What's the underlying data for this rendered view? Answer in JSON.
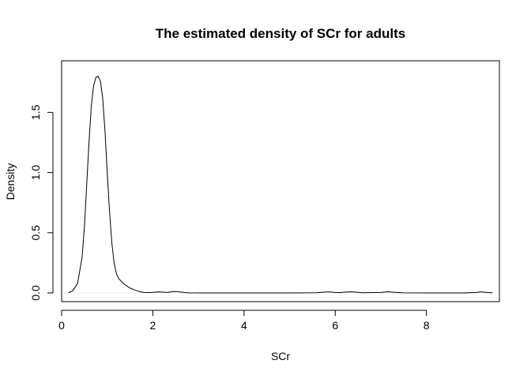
{
  "chart_data": {
    "type": "line",
    "title": "The estimated density of SCr for adults",
    "xlabel": "SCr",
    "ylabel": "Density",
    "xlim": [
      0,
      9.6
    ],
    "ylim": [
      0,
      1.85
    ],
    "x_ticks": [
      {
        "value": 0,
        "label": "0"
      },
      {
        "value": 2,
        "label": "2"
      },
      {
        "value": 4,
        "label": "4"
      },
      {
        "value": 6,
        "label": "6"
      },
      {
        "value": 8,
        "label": "8"
      }
    ],
    "y_ticks": [
      {
        "value": 0,
        "label": "0.0"
      },
      {
        "value": 0.5,
        "label": "0.5"
      },
      {
        "value": 1.0,
        "label": "1.0"
      },
      {
        "value": 1.5,
        "label": "1.5"
      }
    ],
    "grid": false,
    "line_color": "#000000",
    "baseline_color": "#eeeeee",
    "series": [
      {
        "x": [
          0.15,
          0.25,
          0.35,
          0.45,
          0.5,
          0.55,
          0.6,
          0.65,
          0.7,
          0.75,
          0.8,
          0.85,
          0.9,
          0.95,
          1.0,
          1.05,
          1.1,
          1.15,
          1.2,
          1.25,
          1.3,
          1.35,
          1.4,
          1.5,
          1.6,
          1.7,
          1.8,
          1.9,
          2.0,
          2.1,
          2.2,
          2.3,
          2.4,
          2.5,
          2.6,
          2.7,
          2.8,
          3.0,
          4.0,
          5.0,
          5.6,
          5.8,
          5.9,
          6.0,
          6.1,
          6.3,
          6.4,
          6.6,
          7.0,
          7.15,
          7.3,
          7.5,
          8.0,
          8.8,
          9.1,
          9.2,
          9.3,
          9.45
        ],
        "y": [
          0.0,
          0.02,
          0.08,
          0.3,
          0.55,
          0.9,
          1.25,
          1.55,
          1.72,
          1.79,
          1.8,
          1.76,
          1.62,
          1.35,
          1.0,
          0.68,
          0.42,
          0.25,
          0.16,
          0.12,
          0.1,
          0.08,
          0.065,
          0.04,
          0.025,
          0.012,
          0.004,
          0.003,
          0.005,
          0.008,
          0.007,
          0.004,
          0.008,
          0.012,
          0.008,
          0.003,
          0.001,
          0.0,
          0.0,
          0.0,
          0.002,
          0.008,
          0.008,
          0.004,
          0.003,
          0.009,
          0.008,
          0.002,
          0.004,
          0.01,
          0.005,
          0.001,
          0.0,
          0.0,
          0.004,
          0.009,
          0.005,
          0.001
        ]
      }
    ]
  }
}
